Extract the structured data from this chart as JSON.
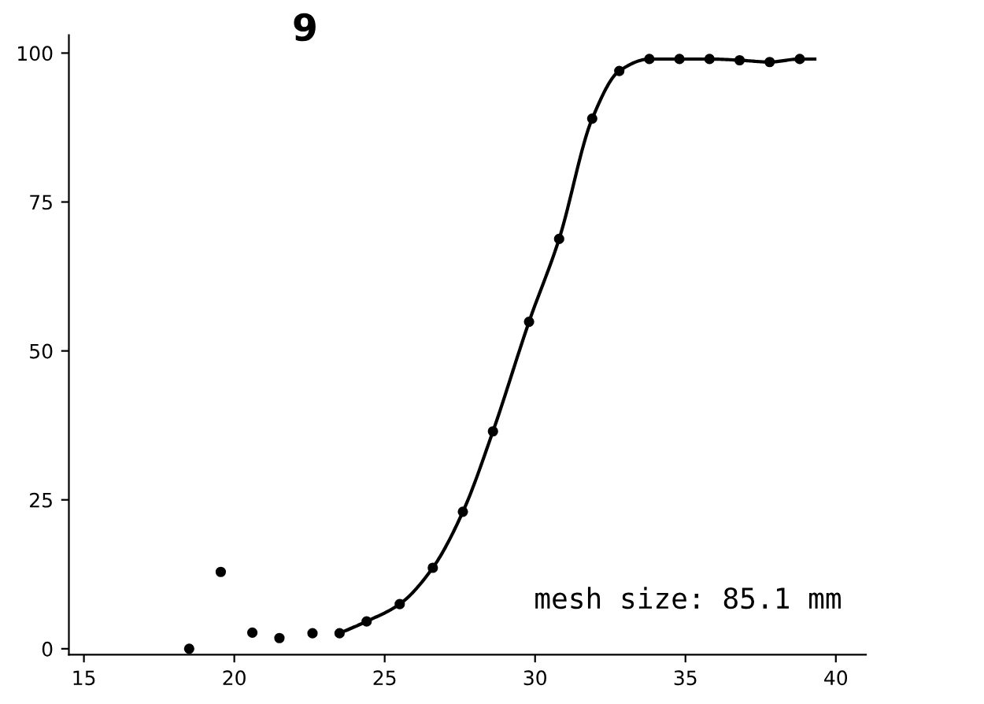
{
  "chart_data": {
    "type": "scatter",
    "title": "9",
    "series": [
      {
        "color": "#000000",
        "marker": "circle",
        "x": [
          18.5,
          19.55,
          20.6,
          21.5,
          22.6,
          23.5,
          24.4,
          25.5,
          26.6,
          27.6,
          28.6,
          29.8,
          30.8,
          31.9,
          32.8,
          33.8,
          34.8,
          35.8,
          36.8,
          37.8,
          38.8
        ],
        "values": [
          0,
          12.9,
          2.7,
          1.8,
          2.6,
          2.6,
          4.6,
          7.5,
          13.6,
          23.0,
          36.5,
          54.9,
          68.8,
          89,
          97,
          99,
          99,
          99,
          98.8,
          98.5,
          99
        ]
      },
      {
        "type": "line",
        "color": "#000000",
        "marker": "none",
        "line_style": "solid",
        "x": [
          23.5,
          24.4,
          25.5,
          26.6,
          27.6,
          28.6,
          29.8,
          30.8,
          31.9,
          32.8,
          33.8,
          34.8,
          35.8,
          36.8,
          37.8,
          38.8,
          39.3
        ],
        "values": [
          2.6,
          4.6,
          7.5,
          13.6,
          23.0,
          36.5,
          54.9,
          68.8,
          89,
          97,
          99,
          99,
          99,
          98.8,
          98.5,
          99,
          99
        ]
      }
    ],
    "xlim": [
      14.5,
      41
    ],
    "ylim": [
      -1,
      103
    ],
    "xticks": [
      15,
      20,
      25,
      30,
      35,
      40
    ],
    "yticks": [
      0,
      25,
      50,
      75,
      100
    ],
    "grid": false,
    "legend": false,
    "annotations": [
      "mesh size: 85.1 mm"
    ]
  }
}
